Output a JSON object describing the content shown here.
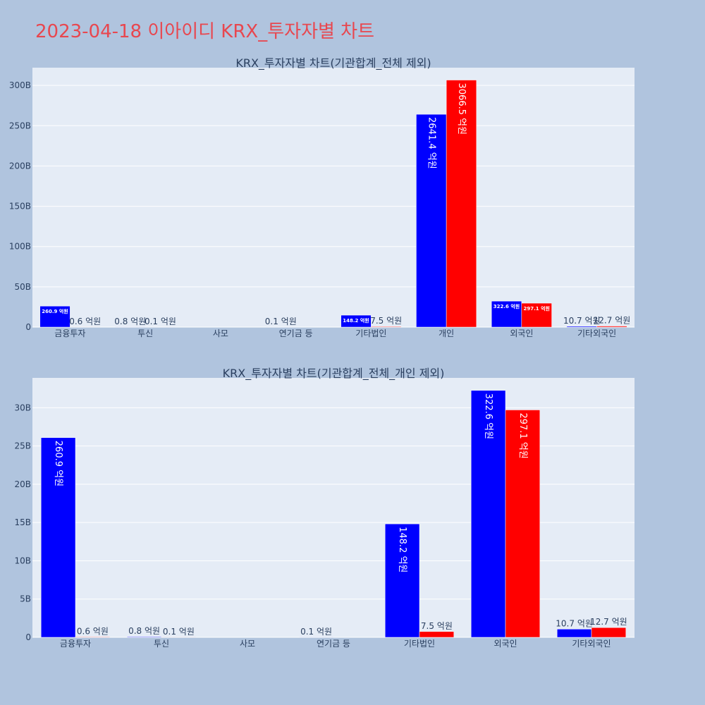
{
  "page_title": "2023-04-18 이아이디 KRX_투자자별 차트",
  "colors": {
    "buy": "#0000ff",
    "sell": "#ff0000",
    "plot_bg": "#e5ecf6",
    "page_bg": "#b0c4de",
    "grid": "#ffffff",
    "text": "#2a3f5f",
    "title": "#e8474f"
  },
  "chart_data": [
    {
      "type": "bar",
      "title": "KRX_투자자별 차트(기관합계_전체 제외)",
      "categories": [
        "금융투자",
        "투신",
        "사모",
        "연기금 등",
        "기타법인",
        "개인",
        "외국인",
        "기타외국인"
      ],
      "series": [
        {
          "values": [
            26.09,
            0.08,
            0,
            0.01,
            14.82,
            264.14,
            32.26,
            1.07
          ],
          "labels": [
            "260.9 억원",
            "0.8 억원",
            "",
            "0.1 억원",
            "148.2 억원",
            "2641.4 억원",
            "322.6 억원",
            "10.7 억원"
          ]
        },
        {
          "values": [
            0.06,
            0.01,
            0,
            0,
            0.75,
            306.65,
            29.71,
            1.27
          ],
          "labels": [
            "0.6 억원",
            "0.1 억원",
            "",
            "",
            "7.5 억원",
            "3066.5 억원",
            "297.1 억원",
            "12.7 억원"
          ]
        }
      ],
      "yticks": [
        "0",
        "50B",
        "100B",
        "150B",
        "200B",
        "250B",
        "300B"
      ],
      "ytick_values": [
        0,
        50,
        100,
        150,
        200,
        250,
        300
      ],
      "ylim": [
        0,
        322
      ],
      "grid": true
    },
    {
      "type": "bar",
      "title": "KRX_투자자별 차트(기관합계_전체_개인 제외)",
      "categories": [
        "금융투자",
        "투신",
        "사모",
        "연기금 등",
        "기타법인",
        "외국인",
        "기타외국인"
      ],
      "series": [
        {
          "values": [
            26.09,
            0.08,
            0,
            0.01,
            14.82,
            32.26,
            1.07
          ],
          "labels": [
            "260.9 억원",
            "0.8 억원",
            "",
            "0.1 억원",
            "148.2 억원",
            "322.6 억원",
            "10.7 억원"
          ]
        },
        {
          "values": [
            0.06,
            0.01,
            0,
            0,
            0.75,
            29.71,
            1.27
          ],
          "labels": [
            "0.6 억원",
            "0.1 억원",
            "",
            "",
            "7.5 억원",
            "297.1 억원",
            "12.7 억원"
          ]
        }
      ],
      "yticks": [
        "0",
        "5B",
        "10B",
        "15B",
        "20B",
        "25B",
        "30B"
      ],
      "ytick_values": [
        0,
        5,
        10,
        15,
        20,
        25,
        30
      ],
      "ylim": [
        0,
        33.9
      ],
      "grid": true
    }
  ]
}
